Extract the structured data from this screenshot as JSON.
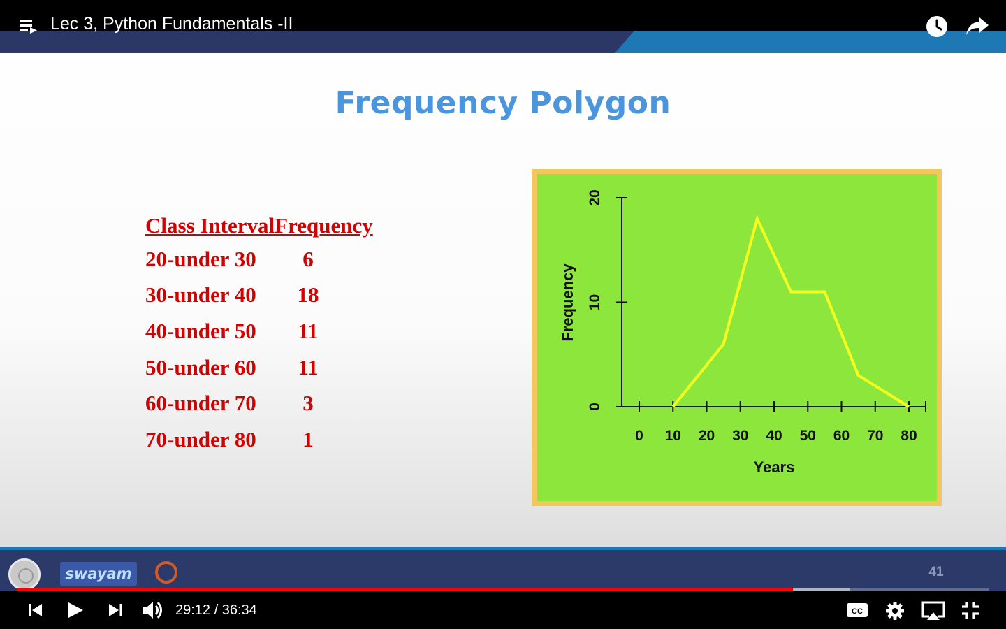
{
  "player": {
    "video_title": "Lec 3, Python Fundamentals -II",
    "current_time": "29:12",
    "duration": "36:34",
    "time_display": "29:12 / 36:34",
    "played_fraction": 0.798,
    "buffered_fraction": 0.857,
    "icons": [
      "playlist-icon",
      "watch-later-icon",
      "share-icon",
      "previous-icon",
      "play-icon",
      "next-icon",
      "volume-icon",
      "captions-icon",
      "settings-icon",
      "cast-icon",
      "exit-fullscreen-icon"
    ],
    "accent_color": "#ff0000"
  },
  "slide": {
    "title": "Frequency Polygon",
    "table": {
      "headers": [
        "Class Interval",
        "Frequency"
      ],
      "rows": [
        {
          "interval": "20-under 30",
          "frequency": "6"
        },
        {
          "interval": "30-under 40",
          "frequency": "18"
        },
        {
          "interval": "40-under 50",
          "frequency": "11"
        },
        {
          "interval": "50-under 60",
          "frequency": "11"
        },
        {
          "interval": "60-under 70",
          "frequency": "3"
        },
        {
          "interval": "70-under 80",
          "frequency": "1"
        }
      ]
    },
    "footer": {
      "logo_text": "swayam",
      "page_number": "41"
    },
    "colors": {
      "title": "#4a95dc",
      "table_text": "#d40000",
      "chart_background": "#8ce63c",
      "chart_border": "#f4c75c",
      "line": "#f5ff1e"
    }
  },
  "chart_data": {
    "type": "line",
    "title": "",
    "xlabel": "Years",
    "ylabel": "Frequency",
    "x": [
      10,
      25,
      35,
      45,
      55,
      65,
      75,
      80
    ],
    "y": [
      0,
      6,
      18,
      11,
      11,
      3,
      1,
      0
    ],
    "x_ticks": [
      "0",
      "10",
      "20",
      "30",
      "40",
      "50",
      "60",
      "70",
      "80"
    ],
    "y_ticks": [
      "0",
      "10",
      "20"
    ],
    "xlim": [
      0,
      80
    ],
    "ylim": [
      0,
      20
    ],
    "grid": false,
    "legend": "none"
  }
}
